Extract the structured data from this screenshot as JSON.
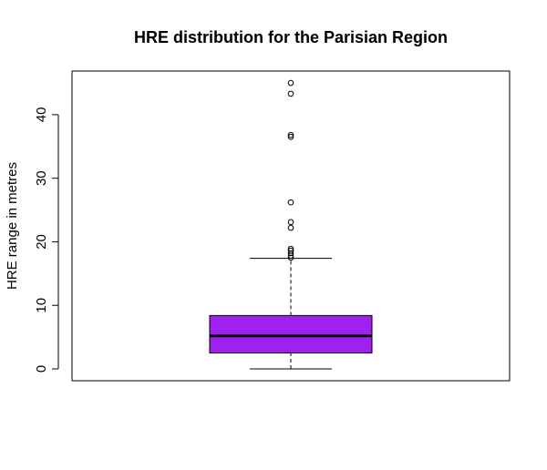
{
  "chart_data": {
    "type": "boxplot",
    "title": "HRE distribution for the Parisian Region",
    "xlabel": "",
    "ylabel": "HRE range in metres",
    "ylim": [
      0,
      45
    ],
    "yticks": [
      0,
      10,
      20,
      30,
      40
    ],
    "ytick_labels": [
      "0",
      "10",
      "20",
      "30",
      "40"
    ],
    "box": {
      "min": 0,
      "q1": 2.5,
      "median": 5.2,
      "q3": 8.4,
      "whisker_high": 17.4,
      "fill_color": "#a020f0"
    },
    "outliers": [
      17.5,
      17.8,
      18.2,
      18.6,
      18.9,
      22.2,
      23.1,
      26.2,
      36.5,
      36.8,
      43.3,
      45.0
    ]
  }
}
